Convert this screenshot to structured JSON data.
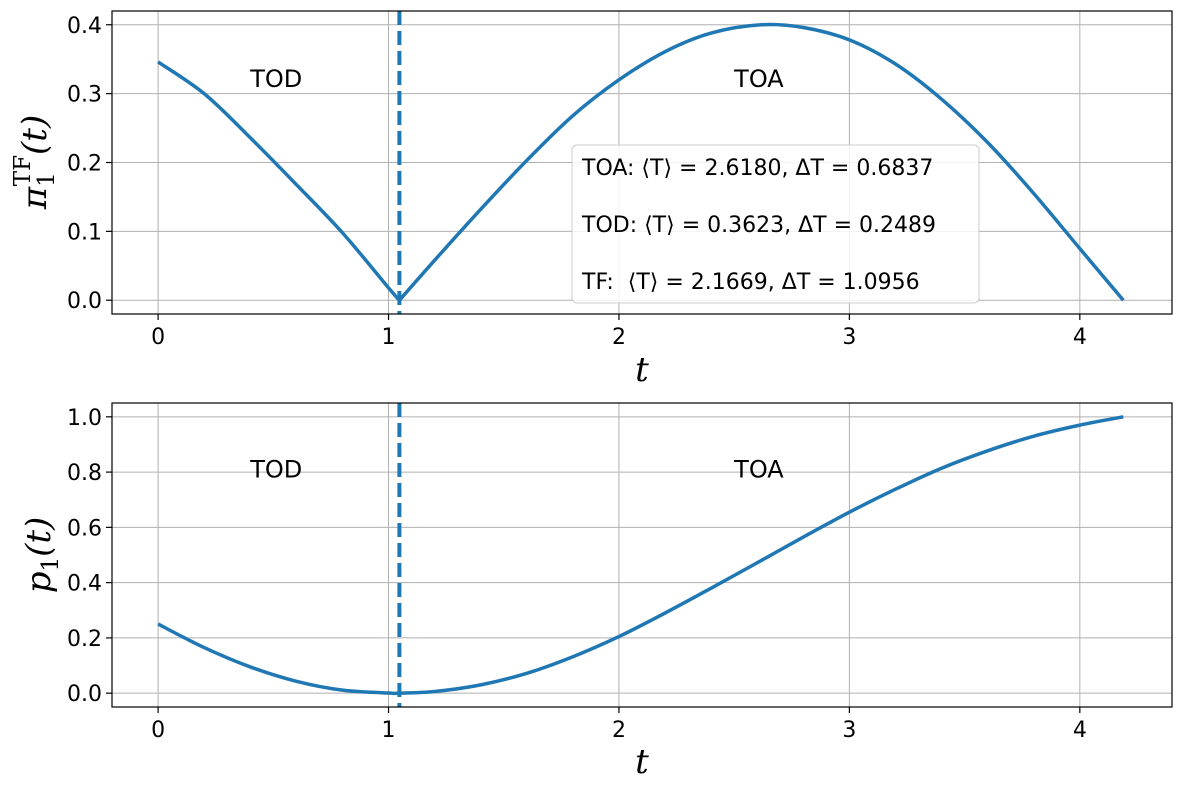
{
  "colors": {
    "line": "#1f77b4",
    "grid": "#b0b0b0"
  },
  "chart_data": [
    {
      "type": "line",
      "xlabel": "t",
      "ylabel": "π₁ᵀᶠ(t)",
      "ylabel_main": "π",
      "ylabel_sub": "1",
      "ylabel_sup": "TF",
      "ylabel_arg": "(t)",
      "xlim": [
        -0.2,
        4.4
      ],
      "ylim": [
        -0.02,
        0.42
      ],
      "xticks": [
        0,
        1,
        2,
        3,
        4
      ],
      "xtick_labels": [
        "0",
        "1",
        "2",
        "3",
        "4"
      ],
      "yticks": [
        0.0,
        0.1,
        0.2,
        0.3,
        0.4
      ],
      "ytick_labels": [
        "0.0",
        "0.1",
        "0.2",
        "0.3",
        "0.4"
      ],
      "grid": true,
      "vline_x": 1.0472,
      "annotations": [
        {
          "text": "TOD",
          "x": 0.4,
          "y": 0.31
        },
        {
          "text": "TOA",
          "x": 2.5,
          "y": 0.31
        }
      ],
      "legend_box": {
        "placement": "center-right",
        "lines": [
          "TOA: ⟨T⟩ = 2.6180, ΔT = 0.6837",
          "TOD: ⟨T⟩ = 0.3623, ΔT = 0.2489",
          "TF:  ⟨T⟩ = 2.1669, ΔT = 1.0956"
        ]
      },
      "series": [
        {
          "x": [
            0.0,
            0.2,
            0.4,
            0.6,
            0.8,
            1.0,
            1.0472,
            1.2,
            1.4,
            1.6,
            1.8,
            2.0,
            2.2,
            2.4,
            2.618,
            2.8,
            3.0,
            3.2,
            3.4,
            3.6,
            3.8,
            4.0,
            4.1888
          ],
          "y": [
            0.346,
            0.3,
            0.236,
            0.168,
            0.098,
            0.018,
            0.0,
            0.058,
            0.132,
            0.203,
            0.268,
            0.32,
            0.361,
            0.388,
            0.4,
            0.396,
            0.378,
            0.343,
            0.292,
            0.229,
            0.155,
            0.075,
            0.0
          ]
        }
      ]
    },
    {
      "type": "line",
      "xlabel": "t",
      "ylabel": "p₁(t)",
      "ylabel_main": "p",
      "ylabel_sub": "1",
      "ylabel_sup": "",
      "ylabel_arg": "(t)",
      "xlim": [
        -0.2,
        4.4
      ],
      "ylim": [
        -0.05,
        1.05
      ],
      "xticks": [
        0,
        1,
        2,
        3,
        4
      ],
      "xtick_labels": [
        "0",
        "1",
        "2",
        "3",
        "4"
      ],
      "yticks": [
        0.0,
        0.2,
        0.4,
        0.6,
        0.8,
        1.0
      ],
      "ytick_labels": [
        "0.0",
        "0.2",
        "0.4",
        "0.6",
        "0.8",
        "1.0"
      ],
      "grid": true,
      "vline_x": 1.0472,
      "annotations": [
        {
          "text": "TOD",
          "x": 0.4,
          "y": 0.78
        },
        {
          "text": "TOA",
          "x": 2.5,
          "y": 0.78
        }
      ],
      "series": [
        {
          "x": [
            0.0,
            0.2,
            0.4,
            0.6,
            0.8,
            1.0,
            1.0472,
            1.2,
            1.4,
            1.6,
            1.8,
            2.0,
            2.2,
            2.4,
            2.6,
            2.8,
            3.0,
            3.2,
            3.4,
            3.6,
            3.8,
            4.0,
            4.1888
          ],
          "y": [
            0.25,
            0.165,
            0.095,
            0.043,
            0.011,
            0.0005,
            0.0,
            0.006,
            0.03,
            0.072,
            0.132,
            0.205,
            0.29,
            0.38,
            0.472,
            0.565,
            0.655,
            0.738,
            0.814,
            0.877,
            0.93,
            0.97,
            1.0
          ]
        }
      ]
    }
  ]
}
